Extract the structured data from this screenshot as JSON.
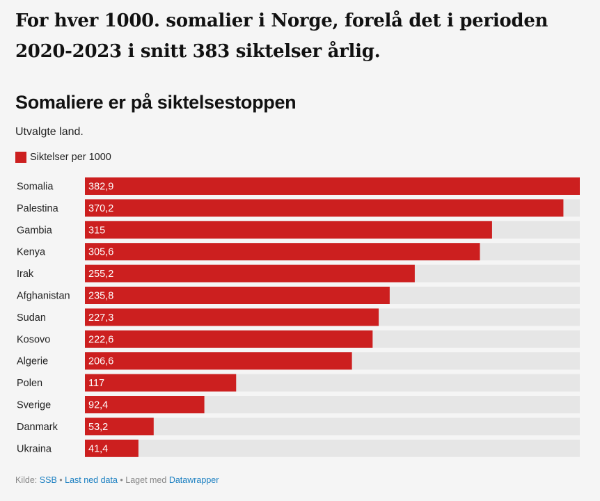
{
  "headline": {
    "line1": "For hver 1000. somalier i Norge, forelå det i perioden",
    "line2": "2020-2023 i snitt 383 siktelser årlig."
  },
  "chart_data": {
    "type": "bar",
    "orientation": "horizontal",
    "title": "Somaliere er på siktelsestoppen",
    "subtitle": "Utvalgte land.",
    "legend": [
      {
        "label": "Siktelser per 1000",
        "color": "#cc1f1f"
      }
    ],
    "categories": [
      "Somalia",
      "Palestina",
      "Gambia",
      "Kenya",
      "Irak",
      "Afghanistan",
      "Sudan",
      "Kosovo",
      "Algerie",
      "Polen",
      "Sverige",
      "Danmark",
      "Ukraina"
    ],
    "values": [
      382.9,
      370.2,
      315,
      305.6,
      255.2,
      235.8,
      227.3,
      222.6,
      206.6,
      117,
      92.4,
      53.2,
      41.4
    ],
    "value_labels": [
      "382,9",
      "370,2",
      "315",
      "305,6",
      "255,2",
      "235,8",
      "227,3",
      "222,6",
      "206,6",
      "117",
      "92,4",
      "53,2",
      "41,4"
    ],
    "xlim": [
      0,
      382.9
    ],
    "bar_color": "#cc1f1f",
    "track_color": "#e6e6e6"
  },
  "footer": {
    "source_prefix": "Kilde:",
    "source_link": "SSB",
    "sep1": "•",
    "download_link": "Last ned data",
    "sep2": "•",
    "made_with_text": "Laget med",
    "made_with_link": "Datawrapper"
  }
}
